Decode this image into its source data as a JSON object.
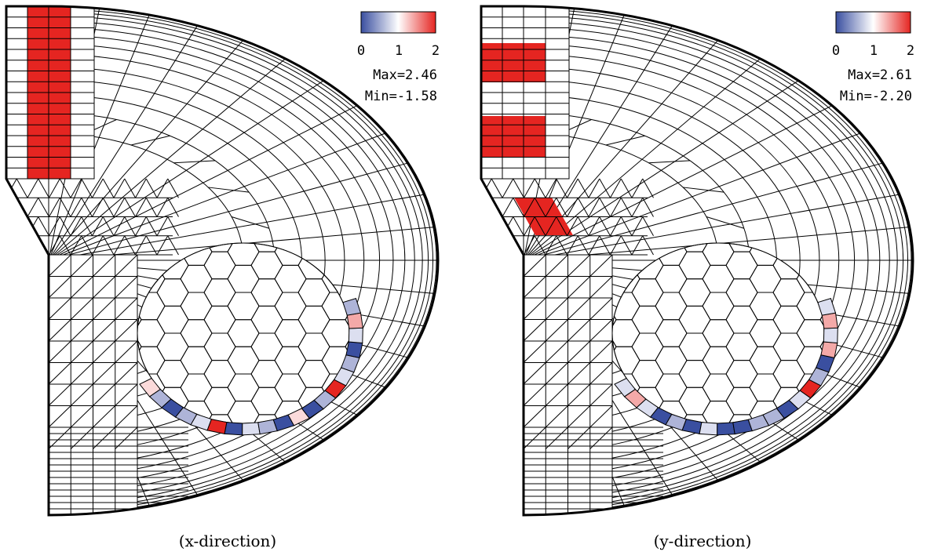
{
  "panels": [
    {
      "colorbar_ticks": [
        0,
        1,
        2
      ],
      "max": "Max=2.46",
      "min": "Min=-1.58",
      "caption": "(x-direction)"
    },
    {
      "colorbar_ticks": [
        0,
        1,
        2
      ],
      "max": "Max=2.61",
      "min": "Min=-2.20",
      "caption": "(y-direction)"
    }
  ]
}
